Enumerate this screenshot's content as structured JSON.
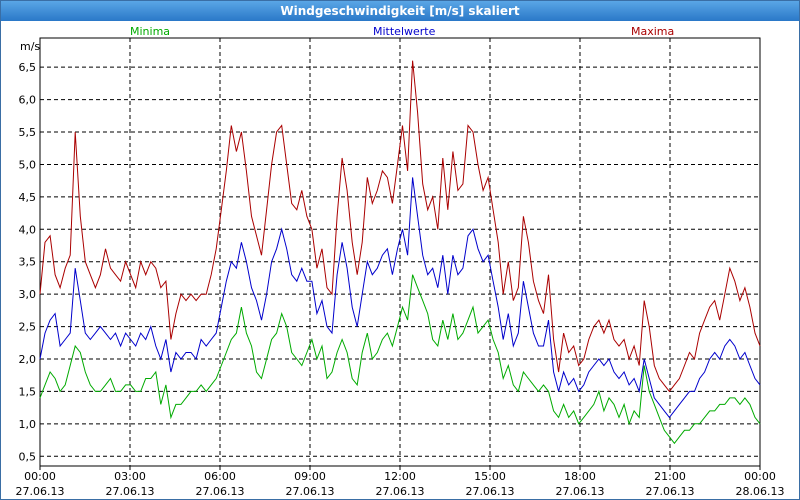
{
  "window": {
    "title": "Windgeschwindigkeit [m/s] skaliert"
  },
  "chart_data": {
    "type": "line",
    "title": "Windgeschwindigkeit [m/s] skaliert",
    "ylabel": "m/s",
    "ylim": [
      0.35,
      6.95
    ],
    "yticks": [
      "0,5",
      "1,0",
      "1,5",
      "2,0",
      "2,5",
      "3,0",
      "3,5",
      "4,0",
      "4,5",
      "5,0",
      "5,5",
      "6,0",
      "6,5"
    ],
    "xticks": [
      {
        "time": "00:00",
        "date": "27.06.13"
      },
      {
        "time": "03:00",
        "date": "27.06.13"
      },
      {
        "time": "06:00",
        "date": "27.06.13"
      },
      {
        "time": "09:00",
        "date": "27.06.13"
      },
      {
        "time": "12:00",
        "date": "27.06.13"
      },
      {
        "time": "15:00",
        "date": "27.06.13"
      },
      {
        "time": "18:00",
        "date": "27.06.13"
      },
      {
        "time": "21:00",
        "date": "27.06.13"
      },
      {
        "time": "00:00",
        "date": "28.06.13"
      }
    ],
    "x_range_hours": [
      0,
      24
    ],
    "grid": true,
    "series": [
      {
        "name": "Minima",
        "color": "#00aa00",
        "values": [
          1.4,
          1.6,
          1.8,
          1.7,
          1.5,
          1.6,
          1.9,
          2.2,
          2.1,
          1.8,
          1.6,
          1.5,
          1.5,
          1.6,
          1.7,
          1.5,
          1.5,
          1.6,
          1.6,
          1.5,
          1.5,
          1.7,
          1.7,
          1.8,
          1.3,
          1.6,
          1.1,
          1.3,
          1.3,
          1.4,
          1.5,
          1.5,
          1.6,
          1.5,
          1.6,
          1.7,
          1.9,
          2.1,
          2.3,
          2.4,
          2.8,
          2.4,
          2.2,
          1.8,
          1.7,
          2.0,
          2.3,
          2.4,
          2.7,
          2.5,
          2.1,
          2.0,
          1.9,
          2.1,
          2.3,
          2.0,
          2.2,
          1.7,
          1.8,
          2.1,
          2.3,
          2.1,
          1.7,
          1.6,
          2.1,
          2.4,
          2.0,
          2.1,
          2.3,
          2.4,
          2.2,
          2.5,
          2.8,
          2.6,
          3.3,
          3.1,
          2.9,
          2.7,
          2.3,
          2.2,
          2.6,
          2.3,
          2.7,
          2.3,
          2.4,
          2.6,
          2.8,
          2.4,
          2.5,
          2.6,
          2.3,
          2.1,
          1.7,
          1.9,
          1.6,
          1.5,
          1.8,
          1.7,
          1.6,
          1.5,
          1.6,
          1.5,
          1.2,
          1.1,
          1.3,
          1.1,
          1.2,
          1.0,
          1.1,
          1.2,
          1.3,
          1.5,
          1.2,
          1.4,
          1.3,
          1.1,
          1.3,
          1.0,
          1.2,
          1.1,
          1.9,
          1.5,
          1.3,
          1.1,
          0.9,
          0.8,
          0.7,
          0.8,
          0.9,
          0.9,
          1.0,
          1.0,
          1.1,
          1.2,
          1.2,
          1.3,
          1.3,
          1.4,
          1.4,
          1.3,
          1.4,
          1.3,
          1.1,
          1.0
        ]
      },
      {
        "name": "Mittelwerte",
        "color": "#0000cc",
        "values": [
          2.0,
          2.4,
          2.6,
          2.7,
          2.2,
          2.3,
          2.4,
          3.4,
          2.9,
          2.4,
          2.3,
          2.4,
          2.5,
          2.4,
          2.3,
          2.4,
          2.2,
          2.4,
          2.3,
          2.2,
          2.4,
          2.3,
          2.5,
          2.2,
          2.0,
          2.3,
          1.8,
          2.1,
          2.0,
          2.1,
          2.1,
          2.0,
          2.3,
          2.2,
          2.3,
          2.4,
          2.8,
          3.2,
          3.5,
          3.4,
          3.8,
          3.5,
          3.1,
          2.9,
          2.6,
          3.0,
          3.5,
          3.7,
          4.0,
          3.7,
          3.3,
          3.2,
          3.4,
          3.2,
          3.2,
          2.7,
          2.9,
          2.5,
          2.4,
          3.3,
          3.8,
          3.4,
          2.8,
          2.5,
          3.0,
          3.5,
          3.3,
          3.4,
          3.6,
          3.7,
          3.3,
          3.7,
          4.0,
          3.6,
          4.8,
          4.2,
          3.6,
          3.3,
          3.4,
          3.1,
          3.6,
          3.0,
          3.6,
          3.3,
          3.4,
          3.9,
          4.0,
          3.7,
          3.5,
          3.6,
          3.2,
          2.8,
          2.3,
          2.7,
          2.2,
          2.4,
          3.2,
          2.8,
          2.4,
          2.2,
          2.2,
          2.6,
          1.8,
          1.5,
          1.8,
          1.6,
          1.7,
          1.5,
          1.6,
          1.8,
          1.9,
          2.0,
          1.9,
          2.0,
          1.8,
          1.7,
          1.8,
          1.6,
          1.7,
          1.5,
          2.0,
          1.7,
          1.4,
          1.3,
          1.2,
          1.1,
          1.2,
          1.3,
          1.4,
          1.5,
          1.5,
          1.7,
          1.8,
          2.0,
          2.1,
          2.0,
          2.2,
          2.3,
          2.2,
          2.0,
          2.1,
          1.9,
          1.7,
          1.6
        ]
      },
      {
        "name": "Maxima",
        "color": "#aa0000",
        "values": [
          3.0,
          3.8,
          3.9,
          3.3,
          3.1,
          3.4,
          3.6,
          5.5,
          4.2,
          3.5,
          3.3,
          3.1,
          3.3,
          3.7,
          3.4,
          3.3,
          3.2,
          3.5,
          3.3,
          3.1,
          3.5,
          3.3,
          3.5,
          3.4,
          3.1,
          3.2,
          2.3,
          2.7,
          3.0,
          2.9,
          3.0,
          2.9,
          3.0,
          3.0,
          3.3,
          3.7,
          4.3,
          4.9,
          5.6,
          5.2,
          5.5,
          4.9,
          4.2,
          3.9,
          3.6,
          4.3,
          5.0,
          5.5,
          5.6,
          5.0,
          4.4,
          4.3,
          4.6,
          4.2,
          4.0,
          3.4,
          3.7,
          3.1,
          3.0,
          4.2,
          5.1,
          4.6,
          3.8,
          3.3,
          3.8,
          4.8,
          4.4,
          4.6,
          4.9,
          4.8,
          4.4,
          5.0,
          5.6,
          4.9,
          6.6,
          5.8,
          4.7,
          4.3,
          4.5,
          4.0,
          5.1,
          4.3,
          5.2,
          4.6,
          4.7,
          5.6,
          5.5,
          5.0,
          4.6,
          4.8,
          4.3,
          3.8,
          3.0,
          3.5,
          2.9,
          3.1,
          4.2,
          3.8,
          3.2,
          2.9,
          2.7,
          3.3,
          2.3,
          1.8,
          2.4,
          2.1,
          2.2,
          1.9,
          2.0,
          2.3,
          2.5,
          2.6,
          2.4,
          2.6,
          2.3,
          2.2,
          2.3,
          2.0,
          2.2,
          1.9,
          2.9,
          2.5,
          1.9,
          1.7,
          1.6,
          1.5,
          1.6,
          1.7,
          1.9,
          2.1,
          2.0,
          2.4,
          2.6,
          2.8,
          2.9,
          2.6,
          3.0,
          3.4,
          3.2,
          2.9,
          3.1,
          2.8,
          2.4,
          2.2
        ]
      }
    ]
  }
}
